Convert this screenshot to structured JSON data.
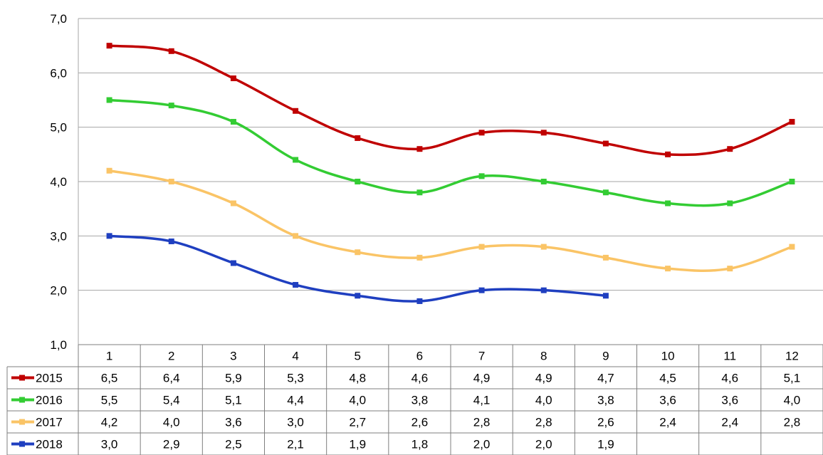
{
  "chart_data": {
    "type": "line",
    "categories": [
      "1",
      "2",
      "3",
      "4",
      "5",
      "6",
      "7",
      "8",
      "9",
      "10",
      "11",
      "12"
    ],
    "ylim": [
      1.0,
      7.0
    ],
    "y_ticks": [
      "1,0",
      "2,0",
      "3,0",
      "4,0",
      "5,0",
      "6,0",
      "7,0"
    ],
    "grid": "horizontal",
    "legend": "data-table",
    "series": [
      {
        "name": "2015",
        "color": "#c00000",
        "values": [
          6.5,
          6.4,
          5.9,
          5.3,
          4.8,
          4.6,
          4.9,
          4.9,
          4.7,
          4.5,
          4.6,
          5.1
        ],
        "labels": [
          "6,5",
          "6,4",
          "5,9",
          "5,3",
          "4,8",
          "4,6",
          "4,9",
          "4,9",
          "4,7",
          "4,5",
          "4,6",
          "5,1"
        ]
      },
      {
        "name": "2016",
        "color": "#33cc33",
        "values": [
          5.5,
          5.4,
          5.1,
          4.4,
          4.0,
          3.8,
          4.1,
          4.0,
          3.8,
          3.6,
          3.6,
          4.0
        ],
        "labels": [
          "5,5",
          "5,4",
          "5,1",
          "4,4",
          "4,0",
          "3,8",
          "4,1",
          "4,0",
          "3,8",
          "3,6",
          "3,6",
          "4,0"
        ]
      },
      {
        "name": "2017",
        "color": "#fac466",
        "values": [
          4.2,
          4.0,
          3.6,
          3.0,
          2.7,
          2.6,
          2.8,
          2.8,
          2.6,
          2.4,
          2.4,
          2.8
        ],
        "labels": [
          "4,2",
          "4,0",
          "3,6",
          "3,0",
          "2,7",
          "2,6",
          "2,8",
          "2,8",
          "2,6",
          "2,4",
          "2,4",
          "2,8"
        ]
      },
      {
        "name": "2018",
        "color": "#1f3fc0",
        "values": [
          3.0,
          2.9,
          2.5,
          2.1,
          1.9,
          1.8,
          2.0,
          2.0,
          1.9,
          null,
          null,
          null
        ],
        "labels": [
          "3,0",
          "2,9",
          "2,5",
          "2,1",
          "1,9",
          "1,8",
          "2,0",
          "2,0",
          "1,9",
          "",
          "",
          ""
        ]
      }
    ]
  }
}
